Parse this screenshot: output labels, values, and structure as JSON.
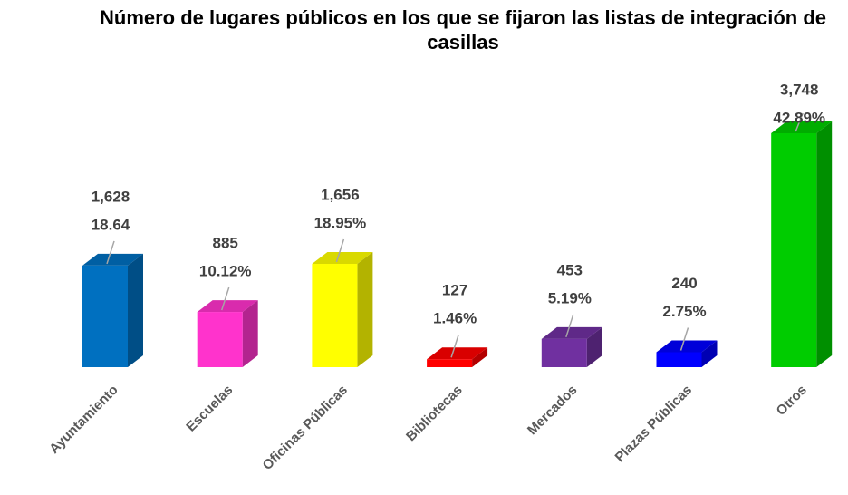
{
  "chart_data": {
    "type": "bar3d",
    "title": "Número de lugares públicos en los que se fijaron las listas de integración de casillas",
    "categories": [
      "Ayuntamiento",
      "Escuelas",
      "Oficinas Públicas",
      "Bibliotecas",
      "Mercados",
      "Plazas Públicas",
      "Otros"
    ],
    "values": [
      1628,
      885,
      1656,
      127,
      453,
      240,
      3748
    ],
    "value_labels": [
      "1,628",
      "885",
      "1,656",
      "127",
      "453",
      "240",
      "3,748"
    ],
    "percent_labels": [
      "18.64",
      "10.12%",
      "18.95%",
      "1.46%",
      "5.19%",
      "2.75%",
      "42.89%"
    ],
    "colors": [
      "#0070c0",
      "#ff33cc",
      "#ffff00",
      "#ff0000",
      "#7030a0",
      "#0000ff",
      "#00cc00"
    ]
  }
}
